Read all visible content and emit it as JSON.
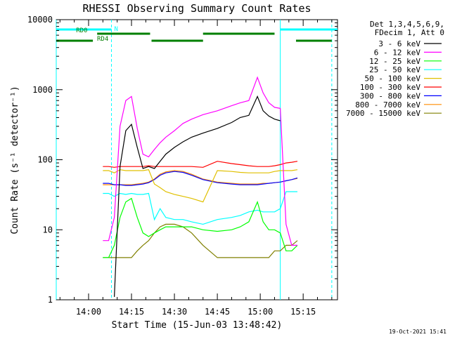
{
  "chart_data": {
    "type": "line",
    "title": "RHESSI Observing Summary Count Rates",
    "xlabel": "Start Time (15-Jun-03 13:48:42)",
    "ylabel": "Count Rate (s⁻¹ detector⁻¹)",
    "y_scale": "log",
    "ylim": [
      1,
      10000
    ],
    "xlim": [
      "13:48:42",
      "15:27:00"
    ],
    "x_ticks": [
      "14:00",
      "14:15",
      "14:30",
      "14:45",
      "15:00",
      "15:15"
    ],
    "y_ticks": [
      "1",
      "10",
      "100",
      "1000",
      "10000"
    ],
    "legend_header": [
      "Det 1,3,4,5,6,9,",
      "FDecim 1, Att 0"
    ],
    "legend_placement": "right",
    "grid": false,
    "footer_date": "19-Oct-2021 15:41",
    "flags": [
      {
        "label": "N",
        "color": "#00ffff",
        "segments": [
          [
            "13:48:42",
            "14:08:00"
          ],
          [
            "15:07:00",
            "15:27:00"
          ]
        ]
      },
      {
        "label": "RD0",
        "color": "#007f00",
        "segments": [
          [
            "14:03:00",
            "14:21:30"
          ],
          [
            "14:40:00",
            "15:05:00"
          ]
        ]
      },
      {
        "label": "RD4",
        "color": "#007f00",
        "segments": [
          [
            "13:48:42",
            "14:01:30"
          ],
          [
            "14:22:00",
            "14:40:00"
          ],
          [
            "15:12:30",
            "15:25:00"
          ]
        ]
      }
    ],
    "markers": [
      {
        "time": "13:48:42",
        "color": "#00ffff",
        "style": "solid"
      },
      {
        "time": "14:08:00",
        "color": "#00ffff",
        "style": "dashed"
      },
      {
        "time": "15:07:00",
        "color": "#00ffff",
        "style": "solid"
      },
      {
        "time": "15:25:00",
        "color": "#00ffff",
        "style": "dashed"
      }
    ],
    "x": [
      "14:05",
      "14:07",
      "14:09",
      "14:11",
      "14:13",
      "14:15",
      "14:17",
      "14:19",
      "14:21",
      "14:23",
      "14:25",
      "14:27",
      "14:30",
      "14:33",
      "14:36",
      "14:40",
      "14:45",
      "14:50",
      "14:53",
      "14:56",
      "14:59",
      "15:01",
      "15:03",
      "15:05",
      "15:07",
      "15:09",
      "15:11",
      "15:13"
    ],
    "series": [
      {
        "name": "3 - 6 keV",
        "color": "#000000",
        "values": [
          null,
          null,
          1.1,
          80,
          260,
          320,
          150,
          75,
          80,
          75,
          95,
          120,
          150,
          180,
          210,
          240,
          280,
          340,
          400,
          430,
          800,
          500,
          420,
          380,
          360,
          null,
          null,
          null
        ]
      },
      {
        "name": "6 - 12 keV",
        "color": "#ff00ff",
        "values": [
          7,
          7,
          15,
          300,
          700,
          800,
          280,
          120,
          110,
          140,
          175,
          210,
          260,
          330,
          380,
          440,
          500,
          590,
          650,
          700,
          1500,
          900,
          650,
          560,
          540,
          12,
          6,
          6
        ]
      },
      {
        "name": "12 - 25 keV",
        "color": "#00ff00",
        "values": [
          4,
          4,
          6,
          15,
          25,
          28,
          15,
          9,
          8,
          9,
          10,
          11,
          11,
          11,
          11,
          10,
          9.5,
          10,
          11,
          13,
          25,
          13,
          10,
          10,
          9,
          5,
          5,
          6
        ]
      },
      {
        "name": "25 - 50 keV",
        "color": "#00ffff",
        "values": [
          33,
          33,
          30,
          33,
          32,
          33,
          32,
          32,
          33,
          14,
          20,
          15,
          14,
          14,
          13,
          12,
          14,
          15,
          16,
          18,
          19,
          18,
          18,
          18,
          20,
          35,
          35,
          35
        ]
      },
      {
        "name": "50 - 100 keV",
        "color": "#e0c000",
        "values": [
          70,
          70,
          65,
          72,
          70,
          70,
          70,
          70,
          72,
          45,
          40,
          35,
          32,
          30,
          28,
          25,
          70,
          68,
          66,
          65,
          65,
          65,
          65,
          68,
          70,
          70,
          70,
          72
        ]
      },
      {
        "name": "100 - 300 keV",
        "color": "#ff0000",
        "values": [
          80,
          80,
          78,
          80,
          80,
          80,
          80,
          80,
          82,
          80,
          80,
          80,
          80,
          80,
          80,
          78,
          95,
          88,
          85,
          82,
          80,
          80,
          80,
          82,
          85,
          90,
          92,
          95
        ]
      },
      {
        "name": "300 - 800 keV",
        "color": "#0000ff",
        "values": [
          46,
          46,
          44,
          44,
          43,
          43,
          44,
          45,
          47,
          52,
          60,
          65,
          68,
          66,
          60,
          52,
          47,
          45,
          44,
          44,
          44,
          45,
          46,
          47,
          48,
          50,
          52,
          55
        ]
      },
      {
        "name": "800 - 7000 keV",
        "color": "#ff8c00",
        "values": [
          44,
          44,
          44,
          44,
          44,
          44,
          45,
          46,
          48,
          53,
          62,
          67,
          70,
          68,
          62,
          53,
          48,
          46,
          45,
          45,
          45,
          46,
          46,
          47,
          48,
          50,
          52,
          54
        ]
      },
      {
        "name": "7000 - 15000 keV",
        "color": "#808000",
        "values": [
          4,
          4,
          4,
          4,
          4,
          4,
          5,
          6,
          7,
          9,
          11,
          12,
          12,
          11,
          9,
          6,
          4,
          4,
          4,
          4,
          4,
          4,
          4,
          5,
          5,
          6,
          6,
          7
        ]
      }
    ]
  }
}
